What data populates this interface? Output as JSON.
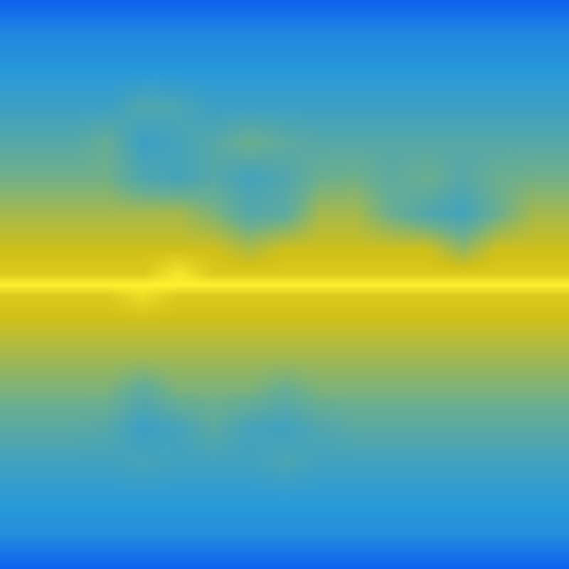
{
  "chart_data": {
    "type": "heatmap",
    "x": [
      0,
      50,
      100,
      150,
      200,
      250,
      300,
      350,
      400,
      450,
      500,
      550,
      600,
      650,
      700,
      750,
      800
    ],
    "y": [
      0,
      50,
      100,
      150,
      200,
      250,
      300,
      350,
      385,
      400,
      415,
      450,
      500,
      550,
      600,
      650,
      700,
      750,
      800
    ],
    "z": [
      [
        0.02,
        0.02,
        0.02,
        0.02,
        0.02,
        0.02,
        0.02,
        0.02,
        0.02,
        0.02,
        0.02,
        0.02,
        0.02,
        0.02,
        0.02,
        0.02,
        0.02
      ],
      [
        0.18,
        0.18,
        0.18,
        0.18,
        0.18,
        0.18,
        0.18,
        0.18,
        0.18,
        0.18,
        0.18,
        0.18,
        0.18,
        0.18,
        0.18,
        0.18,
        0.18
      ],
      [
        0.24,
        0.24,
        0.24,
        0.24,
        0.24,
        0.24,
        0.24,
        0.24,
        0.24,
        0.24,
        0.24,
        0.24,
        0.24,
        0.24,
        0.24,
        0.24,
        0.24
      ],
      [
        0.32,
        0.32,
        0.32,
        0.32,
        0.4,
        0.38,
        0.32,
        0.32,
        0.32,
        0.32,
        0.32,
        0.32,
        0.32,
        0.32,
        0.32,
        0.32,
        0.32
      ],
      [
        0.42,
        0.42,
        0.42,
        0.48,
        0.32,
        0.36,
        0.42,
        0.5,
        0.45,
        0.42,
        0.42,
        0.42,
        0.42,
        0.42,
        0.42,
        0.42,
        0.42
      ],
      [
        0.52,
        0.52,
        0.52,
        0.52,
        0.4,
        0.36,
        0.42,
        0.35,
        0.4,
        0.5,
        0.52,
        0.45,
        0.5,
        0.42,
        0.5,
        0.52,
        0.52
      ],
      [
        0.64,
        0.64,
        0.64,
        0.64,
        0.64,
        0.64,
        0.55,
        0.42,
        0.45,
        0.64,
        0.64,
        0.5,
        0.4,
        0.35,
        0.5,
        0.64,
        0.64
      ],
      [
        0.74,
        0.74,
        0.74,
        0.74,
        0.74,
        0.74,
        0.74,
        0.66,
        0.74,
        0.74,
        0.74,
        0.74,
        0.74,
        0.6,
        0.74,
        0.74,
        0.74
      ],
      [
        0.8,
        0.8,
        0.8,
        0.8,
        0.8,
        0.95,
        0.8,
        0.8,
        0.8,
        0.8,
        0.8,
        0.8,
        0.8,
        0.8,
        0.8,
        0.8,
        0.8
      ],
      [
        1.0,
        1.0,
        1.0,
        1.0,
        1.0,
        1.0,
        1.0,
        1.0,
        1.0,
        1.0,
        1.0,
        1.0,
        1.0,
        1.0,
        1.0,
        1.0,
        1.0
      ],
      [
        0.8,
        0.8,
        0.8,
        0.8,
        0.9,
        0.8,
        0.8,
        0.8,
        0.8,
        0.8,
        0.8,
        0.8,
        0.8,
        0.8,
        0.8,
        0.8,
        0.8
      ],
      [
        0.74,
        0.74,
        0.74,
        0.74,
        0.74,
        0.74,
        0.74,
        0.74,
        0.74,
        0.74,
        0.74,
        0.74,
        0.74,
        0.74,
        0.74,
        0.74,
        0.74
      ],
      [
        0.64,
        0.64,
        0.64,
        0.64,
        0.64,
        0.64,
        0.64,
        0.64,
        0.64,
        0.64,
        0.64,
        0.64,
        0.64,
        0.64,
        0.64,
        0.64,
        0.64
      ],
      [
        0.54,
        0.54,
        0.54,
        0.54,
        0.45,
        0.54,
        0.54,
        0.54,
        0.48,
        0.54,
        0.54,
        0.54,
        0.54,
        0.54,
        0.54,
        0.54,
        0.54
      ],
      [
        0.44,
        0.44,
        0.44,
        0.42,
        0.32,
        0.36,
        0.44,
        0.36,
        0.34,
        0.4,
        0.44,
        0.44,
        0.44,
        0.44,
        0.44,
        0.44,
        0.44
      ],
      [
        0.34,
        0.34,
        0.34,
        0.34,
        0.36,
        0.34,
        0.34,
        0.34,
        0.38,
        0.34,
        0.34,
        0.34,
        0.34,
        0.34,
        0.34,
        0.34,
        0.34
      ],
      [
        0.26,
        0.26,
        0.26,
        0.26,
        0.26,
        0.26,
        0.26,
        0.26,
        0.26,
        0.26,
        0.26,
        0.26,
        0.26,
        0.26,
        0.26,
        0.26,
        0.26
      ],
      [
        0.2,
        0.2,
        0.2,
        0.2,
        0.2,
        0.2,
        0.2,
        0.2,
        0.2,
        0.2,
        0.2,
        0.2,
        0.2,
        0.2,
        0.2,
        0.2,
        0.2
      ],
      [
        0.02,
        0.02,
        0.02,
        0.02,
        0.02,
        0.02,
        0.02,
        0.02,
        0.02,
        0.02,
        0.02,
        0.02,
        0.02,
        0.02,
        0.02,
        0.02,
        0.02
      ]
    ],
    "zlim": [
      0,
      1
    ],
    "xlim": [
      0,
      800
    ],
    "ylim": [
      800,
      0
    ],
    "colors": [
      "#0a5cf0",
      "#2a9ad8",
      "#6aae90",
      "#d2c018",
      "#fff030"
    ],
    "tick_labels": false,
    "grid": false
  }
}
